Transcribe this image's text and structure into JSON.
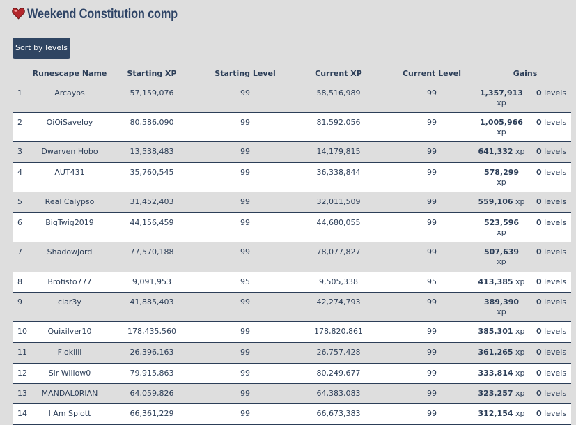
{
  "title": "Weekend Constitution comp",
  "button": "Sort by levels",
  "units": {
    "xp": "xp",
    "levels": "levels"
  },
  "table": {
    "headers": [
      "Runescape Name",
      "Starting XP",
      "Starting Level",
      "Current XP",
      "Current Level",
      "Gains"
    ],
    "rows": [
      [
        "1",
        "Arcayos",
        "57,159,076",
        "99",
        "58,516,989",
        "99",
        "1,357,913",
        "0"
      ],
      [
        "2",
        "OiOiSaveloy",
        "80,586,090",
        "99",
        "81,592,056",
        "99",
        "1,005,966",
        "0"
      ],
      [
        "3",
        "Dwarven Hobo",
        "13,538,483",
        "99",
        "14,179,815",
        "99",
        "641,332",
        "0"
      ],
      [
        "4",
        "AUT431",
        "35,760,545",
        "99",
        "36,338,844",
        "99",
        "578,299",
        "0"
      ],
      [
        "5",
        "Real Calypso",
        "31,452,403",
        "99",
        "32,011,509",
        "99",
        "559,106",
        "0"
      ],
      [
        "6",
        "BigTwig2019",
        "44,156,459",
        "99",
        "44,680,055",
        "99",
        "523,596",
        "0"
      ],
      [
        "7",
        "ShadowJord",
        "77,570,188",
        "99",
        "78,077,827",
        "99",
        "507,639",
        "0"
      ],
      [
        "8",
        "Brofisto777",
        "9,091,953",
        "95",
        "9,505,338",
        "95",
        "413,385",
        "0"
      ],
      [
        "9",
        "clar3y",
        "41,885,403",
        "99",
        "42,274,793",
        "99",
        "389,390",
        "0"
      ],
      [
        "10",
        "Quixilver10",
        "178,435,560",
        "99",
        "178,820,861",
        "99",
        "385,301",
        "0"
      ],
      [
        "11",
        "Flokiiii",
        "26,396,163",
        "99",
        "26,757,428",
        "99",
        "361,265",
        "0"
      ],
      [
        "12",
        "Sir Willow0",
        "79,915,863",
        "99",
        "80,249,677",
        "99",
        "333,814",
        "0"
      ],
      [
        "13",
        "MANDAL0RIAN",
        "64,059,826",
        "99",
        "64,383,083",
        "99",
        "323,257",
        "0"
      ],
      [
        "14",
        "I Am Splott",
        "66,361,229",
        "99",
        "66,673,383",
        "99",
        "312,154",
        "0"
      ]
    ]
  }
}
